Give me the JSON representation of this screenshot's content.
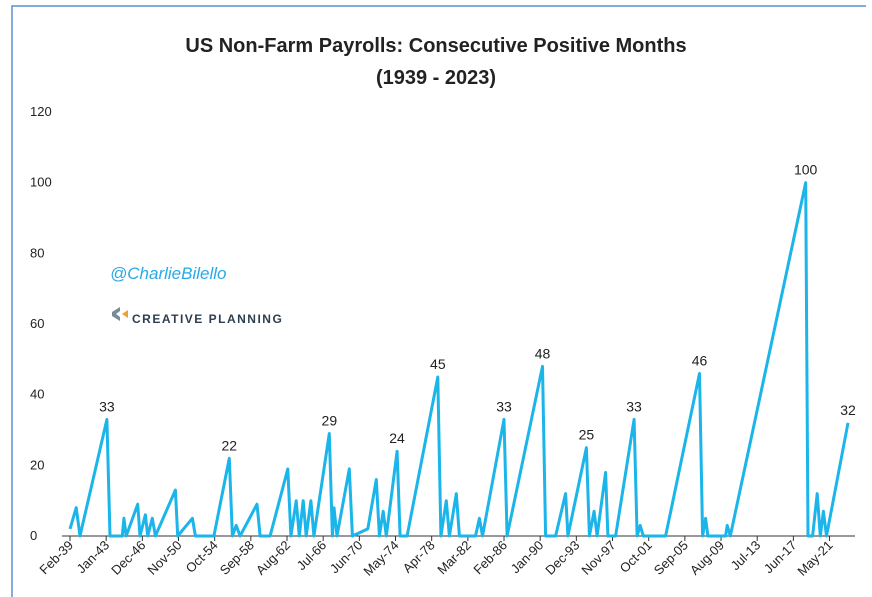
{
  "chart_data": {
    "type": "line",
    "title": "US Non-Farm Payrolls: Consecutive Positive Months",
    "subtitle": "(1939 - 2023)",
    "annotations": [
      "@CharlieBilello",
      "CREATIVE PLANNING"
    ],
    "color": "#1cb5ea",
    "x": [
      "Feb-39",
      "Oct-39",
      "Mar-40",
      "Feb-43",
      "Jun-43",
      "Oct-44",
      "Dec-44",
      "Mar-45",
      "Jun-46",
      "Sep-46",
      "Apr-47",
      "Jul-47",
      "Jan-48",
      "May-48",
      "Jul-50",
      "Oct-50",
      "May-52",
      "Sep-52",
      "Sep-54",
      "May-56",
      "Sep-56",
      "Feb-57",
      "Jul-57",
      "May-59",
      "Sep-59",
      "Oct-60",
      "Sep-62",
      "Jan-63",
      "Aug-63",
      "Dec-63",
      "May-64",
      "Sep-64",
      "Mar-65",
      "Jul-65",
      "Mar-67",
      "Jul-67",
      "Sep-67",
      "Jan-68",
      "May-69",
      "Sep-69",
      "May-71",
      "Apr-72",
      "Aug-72",
      "Jan-73",
      "May-73",
      "Jul-74",
      "Nov-74",
      "Aug-75",
      "Dec-78",
      "Apr-79",
      "Nov-79",
      "Mar-80",
      "Dec-80",
      "Apr-81",
      "Jan-83",
      "Jun-83",
      "Oct-83",
      "Feb-86",
      "Jun-86",
      "Apr-90",
      "Aug-90",
      "Sep-91",
      "Oct-92",
      "Jan-93",
      "Jan-95",
      "May-95",
      "Nov-95",
      "Mar-96",
      "Feb-97",
      "May-97",
      "Mar-98",
      "Mar-00",
      "Jul-00",
      "Nov-00",
      "Mar-01",
      "Aug-03",
      "Apr-07",
      "Aug-07",
      "Dec-07",
      "Mar-08",
      "Feb-10",
      "Apr-10",
      "Aug-10",
      "Oct-18",
      "Jan-19",
      "Jul-19",
      "Jan-20",
      "May-20",
      "Sep-20",
      "Jan-21",
      "May-23"
    ],
    "values": [
      2,
      8,
      0,
      33,
      0,
      0,
      5,
      0,
      9,
      0,
      6,
      0,
      5,
      0,
      13,
      0,
      5,
      0,
      0,
      22,
      0,
      3,
      0,
      9,
      0,
      0,
      19,
      0,
      10,
      0,
      10,
      0,
      10,
      0,
      29,
      0,
      8,
      0,
      19,
      0,
      2,
      16,
      0,
      7,
      0,
      24,
      0,
      0,
      45,
      0,
      10,
      0,
      12,
      0,
      0,
      5,
      0,
      33,
      0,
      48,
      0,
      0,
      12,
      0,
      25,
      0,
      7,
      0,
      18,
      0,
      0,
      33,
      0,
      3,
      0,
      0,
      46,
      0,
      5,
      0,
      0,
      3,
      0,
      100,
      0,
      0,
      12,
      0,
      7,
      0,
      32
    ],
    "value_labels": [
      null,
      null,
      null,
      "33",
      null,
      null,
      null,
      null,
      null,
      null,
      null,
      null,
      null,
      null,
      null,
      null,
      null,
      null,
      null,
      "22",
      null,
      null,
      null,
      null,
      null,
      null,
      null,
      null,
      null,
      null,
      null,
      null,
      null,
      null,
      "29",
      null,
      null,
      null,
      null,
      null,
      null,
      null,
      null,
      null,
      null,
      "24",
      null,
      null,
      "45",
      null,
      null,
      null,
      null,
      null,
      null,
      null,
      null,
      "33",
      null,
      "48",
      null,
      null,
      null,
      null,
      "25",
      null,
      null,
      null,
      null,
      null,
      null,
      "33",
      null,
      null,
      null,
      null,
      "46",
      null,
      null,
      null,
      null,
      null,
      null,
      "100",
      null,
      null,
      null,
      null,
      null,
      null,
      "32"
    ],
    "xlim": [
      "Feb-39",
      "May-23"
    ],
    "xticks": [
      "Feb-39",
      "Jan-43",
      "Dec-46",
      "Nov-50",
      "Oct-54",
      "Sep-58",
      "Aug-62",
      "Jul-66",
      "Jun-70",
      "May-74",
      "Apr-78",
      "Mar-82",
      "Feb-86",
      "Jan-90",
      "Dec-93",
      "Nov-97",
      "Oct-01",
      "Sep-05",
      "Aug-09",
      "Jul-13",
      "Jun-17",
      "May-21"
    ],
    "ylim": [
      0,
      120
    ],
    "yticks": [
      0,
      20,
      40,
      60,
      80,
      100,
      120
    ],
    "grid": false
  }
}
